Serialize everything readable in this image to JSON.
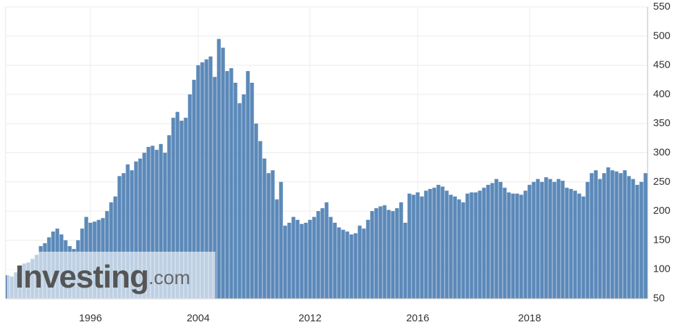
{
  "chart_data": {
    "type": "bar",
    "categories": [
      null,
      null,
      null,
      null,
      null,
      null,
      null,
      null,
      null,
      null,
      null,
      null,
      null,
      null,
      null,
      null,
      null,
      null,
      null,
      null,
      "1996",
      null,
      null,
      null,
      null,
      null,
      null,
      null,
      null,
      null,
      null,
      null,
      null,
      null,
      null,
      null,
      null,
      null,
      null,
      null,
      null,
      null,
      null,
      null,
      null,
      null,
      "2004",
      null,
      null,
      null,
      null,
      null,
      null,
      null,
      null,
      null,
      null,
      null,
      null,
      null,
      null,
      null,
      null,
      null,
      null,
      null,
      null,
      null,
      null,
      null,
      null,
      null,
      null,
      "2012",
      null,
      null,
      null,
      null,
      null,
      null,
      null,
      null,
      null,
      null,
      null,
      null,
      null,
      null,
      null,
      null,
      null,
      null,
      null,
      null,
      null,
      null,
      null,
      null,
      null,
      "2016",
      null,
      null,
      null,
      null,
      null,
      null,
      null,
      null,
      null,
      null,
      null,
      null,
      null,
      null,
      null,
      null,
      null,
      null,
      null,
      null,
      null,
      null,
      null,
      null,
      null,
      null,
      "2018",
      null,
      null,
      null,
      null,
      null,
      null,
      null,
      null,
      null,
      null,
      null,
      null,
      null,
      null,
      null,
      null,
      null,
      null,
      null,
      null,
      null,
      null,
      null,
      null,
      null,
      null,
      null,
      null
    ],
    "values": [
      90,
      88,
      95,
      105,
      110,
      112,
      118,
      125,
      140,
      145,
      155,
      165,
      170,
      160,
      150,
      140,
      135,
      150,
      170,
      190,
      180,
      182,
      185,
      188,
      200,
      215,
      225,
      260,
      265,
      280,
      270,
      285,
      290,
      300,
      310,
      312,
      305,
      315,
      300,
      330,
      360,
      370,
      355,
      360,
      400,
      425,
      450,
      455,
      460,
      465,
      430,
      495,
      480,
      440,
      445,
      420,
      385,
      400,
      440,
      420,
      350,
      320,
      290,
      265,
      270,
      220,
      250,
      175,
      180,
      190,
      185,
      178,
      180,
      185,
      190,
      200,
      205,
      215,
      190,
      180,
      172,
      168,
      165,
      160,
      162,
      175,
      170,
      185,
      200,
      205,
      208,
      210,
      202,
      200,
      205,
      215,
      180,
      230,
      228,
      232,
      225,
      235,
      238,
      240,
      245,
      242,
      235,
      228,
      225,
      220,
      215,
      230,
      232,
      232,
      235,
      240,
      245,
      248,
      255,
      250,
      240,
      232,
      230,
      230,
      228,
      235,
      245,
      250,
      255,
      250,
      258,
      255,
      250,
      255,
      252,
      240,
      238,
      235,
      230,
      225,
      250,
      265,
      270,
      255,
      265,
      275,
      270,
      268,
      265,
      270,
      260,
      255,
      245,
      250,
      265
    ],
    "color": "#5b89b9",
    "ylim": [
      50,
      550
    ],
    "yticks": [
      50,
      100,
      150,
      200,
      250,
      300,
      350,
      400,
      450,
      500,
      550
    ],
    "grid": true,
    "watermark": {
      "brand": "Investing",
      "suffix": ".com"
    }
  }
}
